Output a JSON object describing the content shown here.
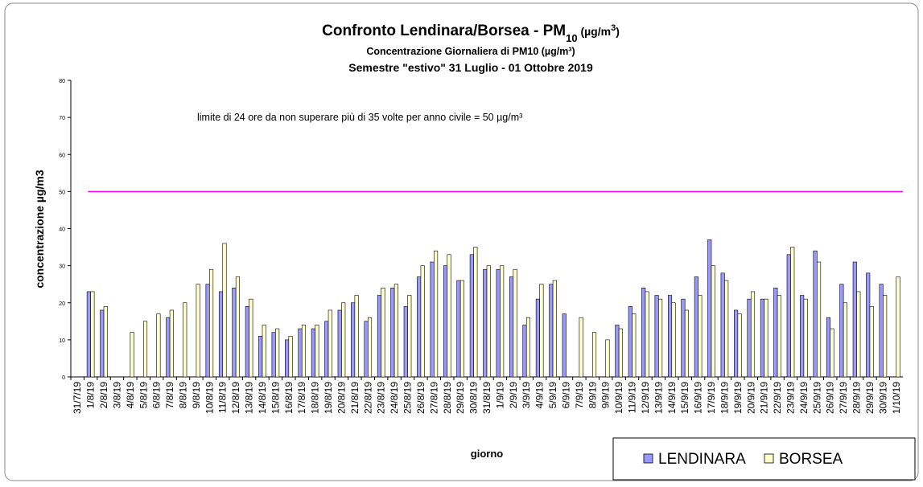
{
  "chart_data": {
    "type": "bar",
    "title": [
      "Confronto Lendinara/Borsea - PM",
      "10",
      " (µg/m",
      "3",
      ")"
    ],
    "subtitle": "Concentrazione Giornaliera di PM10 (µg/m³)",
    "subtitle2": "Semestre \"estivo\" 31 Luglio - 01 Ottobre 2019",
    "annotation": "limite di 24 ore da non superare più di 35 volte per anno civile = 50 µg/m³",
    "threshold": 50,
    "threshold_color": "#ff00ff",
    "xlabel": "giorno",
    "ylabel": "concentrazione µg/m3",
    "ylim": [
      0,
      80
    ],
    "yticks": [
      0,
      10,
      20,
      30,
      40,
      50,
      60,
      70,
      80
    ],
    "legend": "bottom-right",
    "categories": [
      "31/7/19",
      "1/8/19",
      "2/8/19",
      "3/8/19",
      "4/8/19",
      "5/8/19",
      "6/8/19",
      "7/8/19",
      "8/8/19",
      "9/8/19",
      "10/8/19",
      "11/8/19",
      "12/8/19",
      "13/8/19",
      "14/8/19",
      "15/8/19",
      "16/8/19",
      "17/8/19",
      "18/8/19",
      "19/8/19",
      "20/8/19",
      "21/8/19",
      "22/8/19",
      "23/8/19",
      "24/8/19",
      "25/8/19",
      "26/8/19",
      "27/8/19",
      "28/8/19",
      "29/8/19",
      "30/8/19",
      "31/8/19",
      "1/9/19",
      "2/9/19",
      "3/9/19",
      "4/9/19",
      "5/9/19",
      "6/9/19",
      "7/9/19",
      "8/9/19",
      "9/9/19",
      "10/9/19",
      "11/9/19",
      "12/9/19",
      "13/9/19",
      "14/9/19",
      "15/9/19",
      "16/9/19",
      "17/9/19",
      "18/9/19",
      "19/9/19",
      "20/9/19",
      "21/9/19",
      "22/9/19",
      "23/9/19",
      "24/9/19",
      "25/9/19",
      "26/9/19",
      "27/9/19",
      "28/9/19",
      "29/9/19",
      "30/9/19",
      "1/10/19"
    ],
    "series": [
      {
        "name": "LENDINARA",
        "color": "#9999ff",
        "values": [
          null,
          23,
          18,
          null,
          null,
          null,
          null,
          16,
          null,
          null,
          25,
          23,
          24,
          19,
          11,
          12,
          10,
          13,
          13,
          15,
          18,
          20,
          15,
          22,
          24,
          19,
          27,
          31,
          30,
          26,
          33,
          29,
          29,
          27,
          14,
          21,
          25,
          17,
          null,
          null,
          null,
          14,
          19,
          24,
          22,
          22,
          21,
          27,
          37,
          28,
          18,
          21,
          21,
          24,
          33,
          22,
          34,
          16,
          25,
          31,
          28,
          25,
          null
        ]
      },
      {
        "name": "BORSEA",
        "color": "#ffffcc",
        "values": [
          null,
          23,
          19,
          null,
          12,
          15,
          17,
          18,
          20,
          25,
          29,
          36,
          27,
          21,
          14,
          13,
          11,
          14,
          14,
          18,
          20,
          22,
          16,
          24,
          25,
          22,
          30,
          34,
          33,
          26,
          35,
          30,
          30,
          29,
          16,
          25,
          26,
          null,
          16,
          12,
          10,
          13,
          17,
          23,
          21,
          20,
          18,
          22,
          30,
          26,
          17,
          23,
          21,
          22,
          35,
          21,
          31,
          13,
          20,
          23,
          19,
          22,
          27
        ]
      }
    ]
  }
}
